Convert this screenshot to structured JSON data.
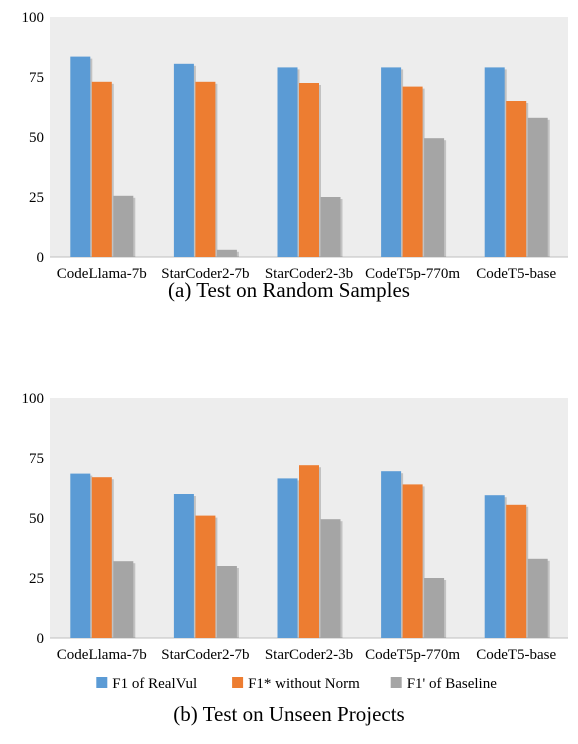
{
  "chart_data": [
    {
      "type": "bar",
      "caption": "(a)  Test on Random Samples",
      "categories": [
        "CodeLlama-7b",
        "StarCoder2-7b",
        "StarCoder2-3b",
        "CodeT5p-770m",
        "CodeT5-base"
      ],
      "series": [
        {
          "name": "F1 of RealVul",
          "values": [
            83.5,
            80.5,
            79,
            79,
            79
          ]
        },
        {
          "name": "F1* without Norm",
          "values": [
            73,
            73,
            72.5,
            71,
            65
          ]
        },
        {
          "name": "F1' of Baseline",
          "values": [
            25.5,
            3,
            25,
            49.5,
            58
          ]
        }
      ],
      "ylim": [
        0,
        100
      ],
      "yticks": [
        0,
        25,
        50,
        75,
        100
      ],
      "grid": false,
      "legend": "bottom"
    },
    {
      "type": "bar",
      "caption": "(b)  Test on Unseen Projects",
      "categories": [
        "CodeLlama-7b",
        "StarCoder2-7b",
        "StarCoder2-3b",
        "CodeT5p-770m",
        "CodeT5-base"
      ],
      "series": [
        {
          "name": "F1 of RealVul",
          "values": [
            68.5,
            60,
            66.5,
            69.5,
            59.5
          ]
        },
        {
          "name": "F1* without Norm",
          "values": [
            67,
            51,
            72,
            64,
            55.5
          ]
        },
        {
          "name": "F1' of Baseline",
          "values": [
            32,
            30,
            49.5,
            25,
            33
          ]
        }
      ],
      "ylim": [
        0,
        100
      ],
      "yticks": [
        0,
        25,
        50,
        75,
        100
      ],
      "grid": false,
      "legend": "bottom"
    }
  ],
  "colors": {
    "plot_background": "#ededed",
    "series": [
      "#5b9bd5",
      "#ed7d31",
      "#a5a5a5"
    ]
  }
}
